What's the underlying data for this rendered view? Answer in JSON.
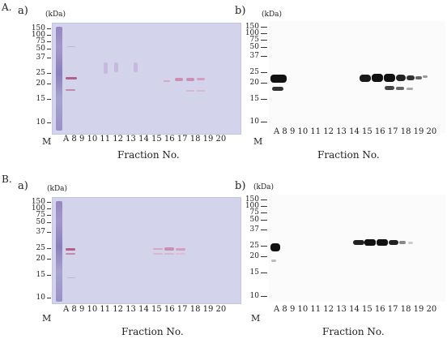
{
  "section_a": {
    "label": "A.",
    "gel": {
      "label": "a)",
      "unit": "(kDa)"
    },
    "blot": {
      "label": "b)",
      "unit": "(kDa)"
    }
  },
  "section_b": {
    "label": "B.",
    "gel": {
      "label": "a)",
      "unit": "(kDa)"
    },
    "blot": {
      "label": "b)",
      "unit": "(kDa)"
    }
  },
  "mw_markers": [
    "150",
    "100",
    "75",
    "50",
    "37",
    "25",
    "20",
    "15",
    "10"
  ],
  "lane_labels": {
    "a_gel": "A  8  9  10 11 12  13  14 15 16  17   18 19  20",
    "a_blot": "A 8   9  10 11 12 13 14 15  16   17  18 19 20",
    "b_gel": "A  8  9 10  11  12 13 14 15 16  17  18 19 20",
    "b_blot": "A 8   9 10  11 12 13 14 15  16   17  18 19 20"
  },
  "marker_label": "M",
  "fraction_label": "Fraction No."
}
